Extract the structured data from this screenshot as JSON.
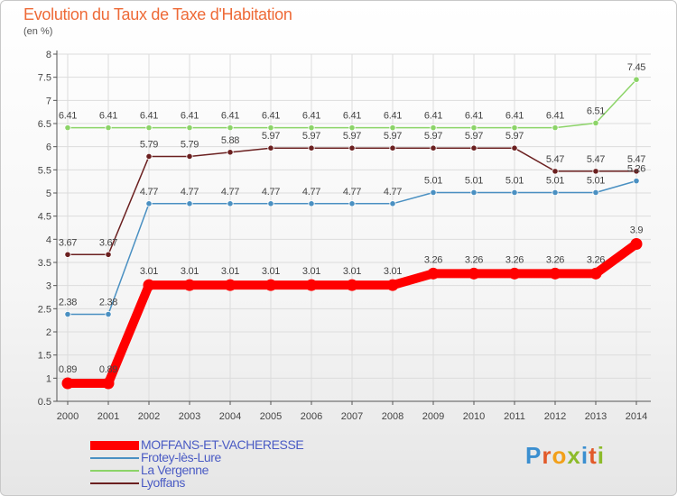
{
  "header": {
    "title": "Evolution du Taux de Taxe d'Habitation",
    "unit": "(en %)"
  },
  "brand": {
    "text": "Proxiti",
    "letter_colors": [
      "#3b8fd0",
      "#e25a2a",
      "#f2a01a",
      "#8dbb2a",
      "#3b8fd0",
      "#e25a2a",
      "#8dbb2a"
    ]
  },
  "colors": {
    "moffans": "#ff0000",
    "frotey": "#4a90c2",
    "vergenne": "#8cd468",
    "lyoffans": "#6b2020",
    "axis": "#555555",
    "grid": "#dcdcdc",
    "label": "#444444"
  },
  "chart_data": {
    "type": "line",
    "title": "Evolution du Taux de Taxe d'Habitation",
    "ylabel": "(en %)",
    "xlabel": "",
    "ylim": [
      0.5,
      8
    ],
    "yticks": [
      "0.5",
      "1",
      "1.5",
      "2",
      "2.5",
      "3",
      "3.5",
      "4",
      "4.5",
      "5",
      "5.5",
      "6",
      "6.5",
      "7",
      "7.5",
      "8"
    ],
    "ytick_values": [
      0.5,
      1,
      1.5,
      2,
      2.5,
      3,
      3.5,
      4,
      4.5,
      5,
      5.5,
      6,
      6.5,
      7,
      7.5,
      8
    ],
    "categories": [
      "2000",
      "2001",
      "2002",
      "2003",
      "2004",
      "2005",
      "2006",
      "2007",
      "2008",
      "2009",
      "2010",
      "2011",
      "2012",
      "2013",
      "2014"
    ],
    "grid": true,
    "series": [
      {
        "name": "MOFFANS-ET-VACHERESSE",
        "key": "moffans",
        "values": [
          0.89,
          0.89,
          3.01,
          3.01,
          3.01,
          3.01,
          3.01,
          3.01,
          3.01,
          3.26,
          3.26,
          3.26,
          3.26,
          3.26,
          3.9
        ],
        "labels": [
          "0.89",
          "0.89",
          "3.01",
          "3.01",
          "3.01",
          "3.01",
          "3.01",
          "3.01",
          "3.01",
          "3.26",
          "3.26",
          "3.26",
          "3.26",
          "3.26",
          "3.9"
        ]
      },
      {
        "name": "Frotey-lès-Lure",
        "key": "frotey",
        "values": [
          2.38,
          2.38,
          4.77,
          4.77,
          4.77,
          4.77,
          4.77,
          4.77,
          4.77,
          5.01,
          5.01,
          5.01,
          5.01,
          5.01,
          5.26
        ],
        "labels": [
          "2.38",
          "2.38",
          "4.77",
          "4.77",
          "4.77",
          "4.77",
          "4.77",
          "4.77",
          "4.77",
          "5.01",
          "5.01",
          "5.01",
          "5.01",
          "5.01",
          "5.26"
        ]
      },
      {
        "name": "La Vergenne",
        "key": "vergenne",
        "values": [
          6.41,
          6.41,
          6.41,
          6.41,
          6.41,
          6.41,
          6.41,
          6.41,
          6.41,
          6.41,
          6.41,
          6.41,
          6.41,
          6.51,
          7.45
        ],
        "labels": [
          "6.41",
          "6.41",
          "6.41",
          "6.41",
          "6.41",
          "6.41",
          "6.41",
          "6.41",
          "6.41",
          "6.41",
          "6.41",
          "6.41",
          "6.41",
          "6.51",
          "7.45"
        ]
      },
      {
        "name": "Lyoffans",
        "key": "lyoffans",
        "values": [
          3.67,
          3.67,
          5.79,
          5.79,
          5.88,
          5.97,
          5.97,
          5.97,
          5.97,
          5.97,
          5.97,
          5.97,
          5.47,
          5.47,
          5.47
        ],
        "labels": [
          "3.67",
          "3.67",
          "5.79",
          "5.79",
          "5.88",
          "5.97",
          "5.97",
          "5.97",
          "5.97",
          "5.97",
          "5.97",
          "5.97",
          "5.47",
          "5.47",
          "5.47"
        ]
      }
    ]
  }
}
